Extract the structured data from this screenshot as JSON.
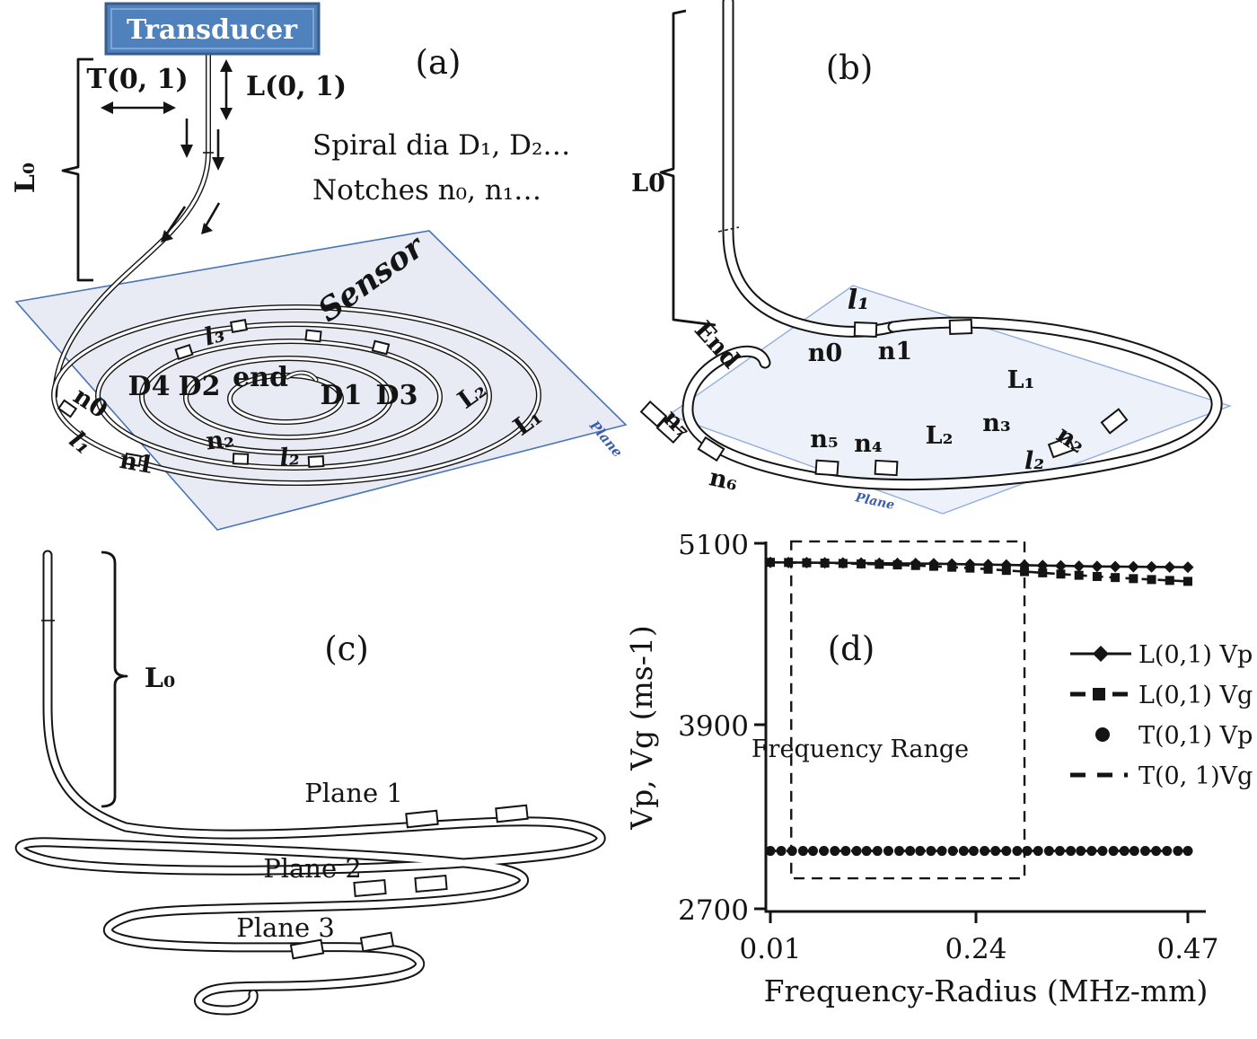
{
  "figure": {
    "background": "#ffffff",
    "panel_tags": {
      "a": "(a)",
      "b": "(b)",
      "c": "(c)",
      "d": "(d)"
    }
  },
  "colors": {
    "transducer_fill": "#4f81bd",
    "transducer_border": "#385d8a",
    "plane_fill": "#e8ebf4",
    "plane_border": "#4a74b8",
    "plane_text": "#3a5dae",
    "ink": "#141414"
  },
  "panel_a": {
    "transducer": "Transducer",
    "l0": "L₀",
    "mode_torsional": "T(0, 1)",
    "mode_longitudinal": "L(0, 1)",
    "note_line1": "Spiral dia D₁, D₂…",
    "note_line2": "Notches n₀, n₁…",
    "sensor": "Sensor",
    "plane": "Plane",
    "labels": {
      "d4": "D4",
      "d2": "D2",
      "end": "end",
      "d1": "D1",
      "d3": "D3",
      "l3": "l₃",
      "L2": "L₂",
      "L1": "L₁",
      "n0": "n0",
      "l1": "l₁",
      "n1": "n1",
      "n2": "n₂",
      "l2": "l₂"
    }
  },
  "panel_b": {
    "l0": "L0",
    "end": "End",
    "plane": "Plane",
    "labels": {
      "l1": "l₁",
      "n0": "n0",
      "n1": "n1",
      "L1": "L₁",
      "n3": "n₃",
      "n2": "n₂",
      "l2": "l₂",
      "L2": "L₂",
      "n4": "n₄",
      "n5": "n₅",
      "n6": "n₆",
      "n7": "n₇"
    }
  },
  "panel_c": {
    "l0": "L₀",
    "plane1": "Plane 1",
    "plane2": "Plane 2",
    "plane3": "Plane 3"
  },
  "chart_data": {
    "type": "line",
    "title": "",
    "xlabel": "Frequency-Radius (MHz-mm)",
    "ylabel": "Vp, Vg (ms-1)",
    "xlim": [
      0.01,
      0.47
    ],
    "ylim": [
      2700,
      5100
    ],
    "xticks": [
      "0.01",
      "0.24",
      "0.47"
    ],
    "yticks": [
      "5100",
      "3900",
      "2700"
    ],
    "grid": false,
    "legend_position": "right",
    "annotations": [
      {
        "type": "rect",
        "label": "Frequency Range",
        "x0": 0.033,
        "x1": 0.29,
        "y0": 2900,
        "y1": 5112
      }
    ],
    "series": [
      {
        "name": "L(0,1) Vp",
        "marker": "diamond",
        "line": "solid",
        "x": [
          0.01,
          0.03,
          0.05,
          0.07,
          0.09,
          0.11,
          0.13,
          0.15,
          0.17,
          0.19,
          0.21,
          0.23,
          0.25,
          0.27,
          0.29,
          0.31,
          0.33,
          0.35,
          0.37,
          0.39,
          0.41,
          0.43,
          0.45,
          0.47
        ],
        "y": [
          4975,
          4974,
          4973,
          4972,
          4971,
          4970,
          4969,
          4968,
          4967,
          4966,
          4964,
          4962,
          4960,
          4958,
          4956,
          4954,
          4952,
          4950,
          4948,
          4947,
          4946,
          4945,
          4944,
          4943
        ]
      },
      {
        "name": "L(0,1) Vg",
        "marker": "square",
        "line": "dashed",
        "x": [
          0.01,
          0.03,
          0.05,
          0.07,
          0.09,
          0.11,
          0.13,
          0.15,
          0.17,
          0.19,
          0.21,
          0.23,
          0.25,
          0.27,
          0.29,
          0.31,
          0.33,
          0.35,
          0.37,
          0.39,
          0.41,
          0.43,
          0.45,
          0.47
        ],
        "y": [
          4975,
          4974,
          4972,
          4970,
          4968,
          4965,
          4962,
          4958,
          4954,
          4949,
          4943,
          4937,
          4930,
          4922,
          4914,
          4906,
          4898,
          4890,
          4882,
          4875,
          4868,
          4862,
          4856,
          4850
        ]
      },
      {
        "name": "T(0,1) Vp",
        "marker": "circle",
        "line": "none",
        "x": [
          0.01,
          0.022,
          0.034,
          0.046,
          0.057,
          0.069,
          0.081,
          0.093,
          0.105,
          0.116,
          0.128,
          0.14,
          0.152,
          0.164,
          0.175,
          0.187,
          0.199,
          0.211,
          0.223,
          0.234,
          0.246,
          0.258,
          0.27,
          0.282,
          0.293,
          0.305,
          0.317,
          0.329,
          0.341,
          0.352,
          0.364,
          0.376,
          0.388,
          0.4,
          0.411,
          0.423,
          0.435,
          0.447,
          0.459,
          0.47
        ],
        "y": [
          3080,
          3080,
          3080,
          3080,
          3080,
          3080,
          3080,
          3080,
          3080,
          3080,
          3080,
          3080,
          3080,
          3080,
          3080,
          3080,
          3080,
          3080,
          3080,
          3080,
          3080,
          3080,
          3080,
          3080,
          3080,
          3080,
          3080,
          3080,
          3080,
          3080,
          3080,
          3080,
          3080,
          3080,
          3080,
          3080,
          3080,
          3080,
          3080,
          3080
        ]
      },
      {
        "name": "T(0, 1)Vg",
        "marker": "none",
        "line": "dashed",
        "x": [
          0.01,
          0.47
        ],
        "y": [
          3080,
          3080
        ]
      }
    ]
  }
}
